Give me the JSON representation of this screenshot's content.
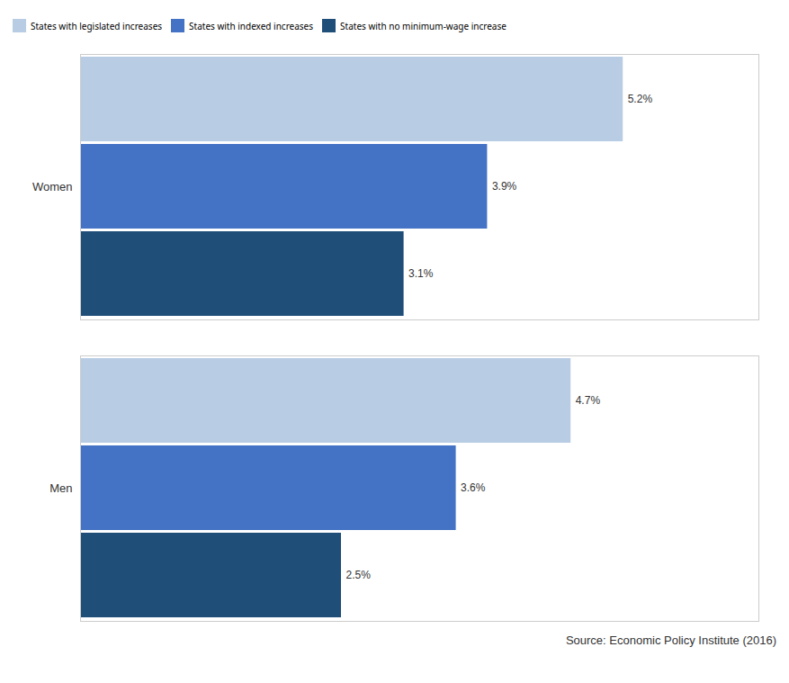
{
  "chart_data": {
    "type": "bar",
    "orientation": "horizontal",
    "categories": [
      "Women",
      "Men"
    ],
    "series": [
      {
        "name": "States with legislated increases",
        "color": "#b8cce4",
        "values": [
          5.2,
          4.7
        ],
        "value_labels": [
          "5.2%",
          "4.7%"
        ]
      },
      {
        "name": "States with indexed increases",
        "color": "#4472c4",
        "values": [
          3.9,
          3.6
        ],
        "value_labels": [
          "3.9%",
          "3.6%"
        ]
      },
      {
        "name": "States with no minimum-wage increase",
        "color": "#1f4e79",
        "values": [
          3.1,
          2.5
        ],
        "value_labels": [
          "3.1%",
          "2.5%"
        ]
      }
    ],
    "xlim": [
      0,
      6.5
    ],
    "data_labels": true,
    "tick_labels": "y",
    "grid": false,
    "legend": "upper left",
    "annotations": [
      "Source: Economic Policy Institute (2016)"
    ]
  }
}
